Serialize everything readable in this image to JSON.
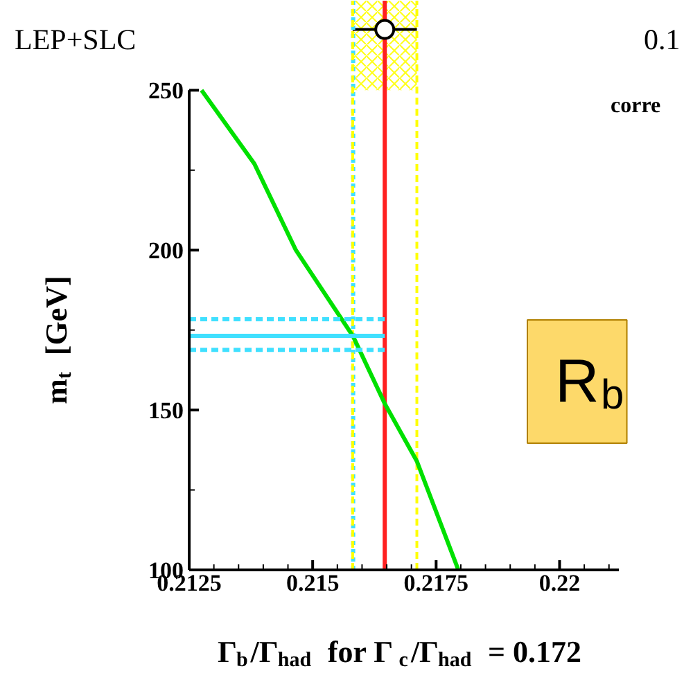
{
  "chart_data": {
    "type": "line",
    "xlabel": "Γ$_{b}$/Γ$_{had}$ for Γ$_{c}$/Γ$_{had}$ = 0.172",
    "ylabel": "m$_{t}$ [GeV]",
    "annotations": [
      "LEP+SLC",
      "0.1",
      "corre",
      "R$_{b}$"
    ],
    "xlim": [
      0.2125,
      0.2212
    ],
    "xticks": [
      0.2125,
      0.215,
      0.2175,
      0.22
    ],
    "ylim": [
      100,
      278
    ],
    "yticks": [
      100,
      150,
      200,
      250
    ],
    "grid": false,
    "series": [
      {
        "color": "#00e000",
        "line_style": "solid",
        "x": [
          0.21275,
          0.21382,
          0.21466,
          0.21582,
          0.21646,
          0.21711,
          0.21795
        ],
        "values": [
          250,
          227,
          200,
          173,
          152,
          134,
          100
        ]
      },
      {
        "color": "#40e0ff",
        "line_style": "solid",
        "x": [
          0.2125,
          0.21646
        ],
        "values": [
          173.2,
          173.2
        ]
      },
      {
        "color": "#40e0ff",
        "line_style": "dashed",
        "x": [
          0.2125,
          0.21646
        ],
        "values": [
          178.4,
          178.4
        ]
      },
      {
        "color": "#40e0ff",
        "line_style": "dashed",
        "x": [
          0.2125,
          0.21646
        ],
        "values": [
          168.8,
          168.8
        ]
      },
      {
        "type": "scatter",
        "color": "#000000",
        "marker": "circle",
        "x": [
          0.21646
        ],
        "values": [
          269
        ],
        "xerrors": [
          0.00065
        ]
      }
    ],
    "ref_lines": [
      {
        "axis": "x",
        "value": 0.21582,
        "color": "#40e0ff",
        "line_style": "dotted"
      },
      {
        "axis": "x",
        "value": 0.21646,
        "color": "#ff2020",
        "line_style": "solid"
      },
      {
        "axis": "x",
        "value": 0.21581,
        "color": "#ffff00",
        "line_style": "dashed"
      },
      {
        "axis": "x",
        "value": 0.21711,
        "color": "#ffff00",
        "line_style": "dashed"
      }
    ],
    "bands": [
      {
        "axis": "x",
        "from": 0.21581,
        "to": 0.21711,
        "color": "#ffff00"
      }
    ]
  }
}
